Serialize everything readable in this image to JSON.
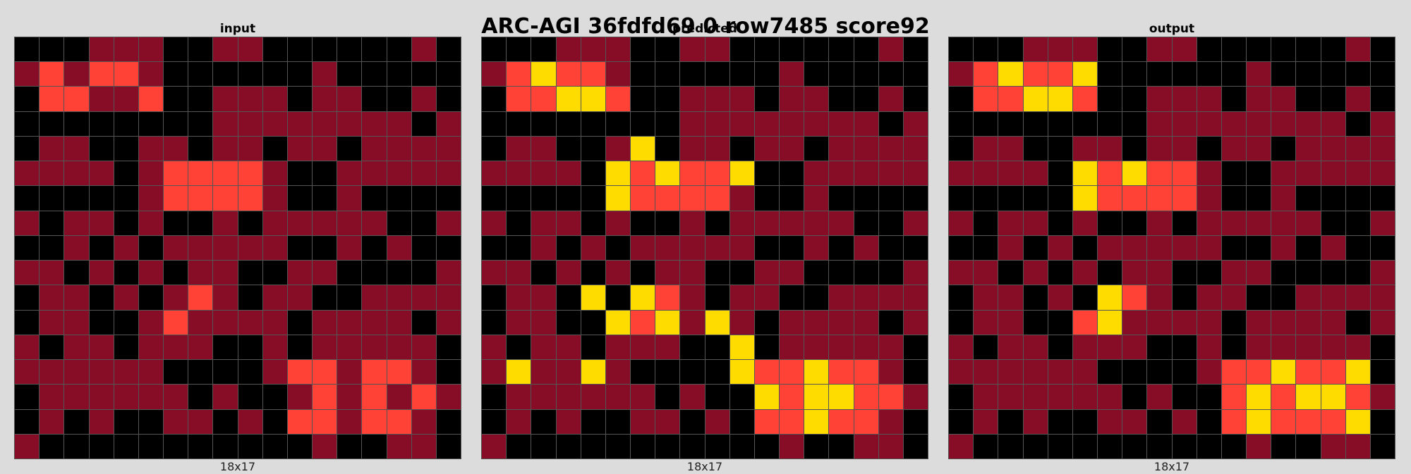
{
  "title": "ARC-AGI 36fdfd69 0 row7485 score92",
  "colors": {
    "0": "#000000",
    "2": "#870c25",
    "4": "#ff4136",
    "6": "#ffdc00"
  },
  "panels": [
    {
      "label": "input",
      "dims": "18x17",
      "grid": [
        "000222002200000020",
        "242442000000200000",
        "044224002220220020",
        "000000002222222202",
        "022002202202202222",
        "222202444420022222",
        "000002444420020000",
        "202202002022222002",
        "002020222220020200",
        "220202022002200002",
        "022020242022002222",
        "022002422220222202",
        "202202220020222220",
        "222222000024424420",
        "022222202002424242",
        "020200220204424420",
        "200000000000200220"
      ]
    },
    {
      "label": "predicted",
      "dims": "18x17",
      "grid": [
        "000222002200000020",
        "246442000000200000",
        "044664002220220020",
        "000000002222222202",
        "022002602202202222",
        "222206464460022222",
        "000006444420020000",
        "202202002022222002",
        "002020222220020200",
        "220202022002200002",
        "022060642022002222",
        "022006462620222202",
        "202202220060222220",
        "262262000064464420",
        "022222202006466442",
        "020200220204464420",
        "200000000000200220"
      ]
    },
    {
      "label": "output",
      "dims": "18x17",
      "grid": [
        "000222002200000020",
        "246446000000200000",
        "044664002220220020",
        "000000002222222202",
        "022002202202202222",
        "222206464420022222",
        "000006444420020000",
        "202202002022222002",
        "002020222220020200",
        "220202022002200002",
        "022020642022002222",
        "022004622220222202",
        "202202220020222220",
        "222222000024464460",
        "022222202004646642",
        "020200220204644460",
        "200000000000200220"
      ]
    }
  ]
}
